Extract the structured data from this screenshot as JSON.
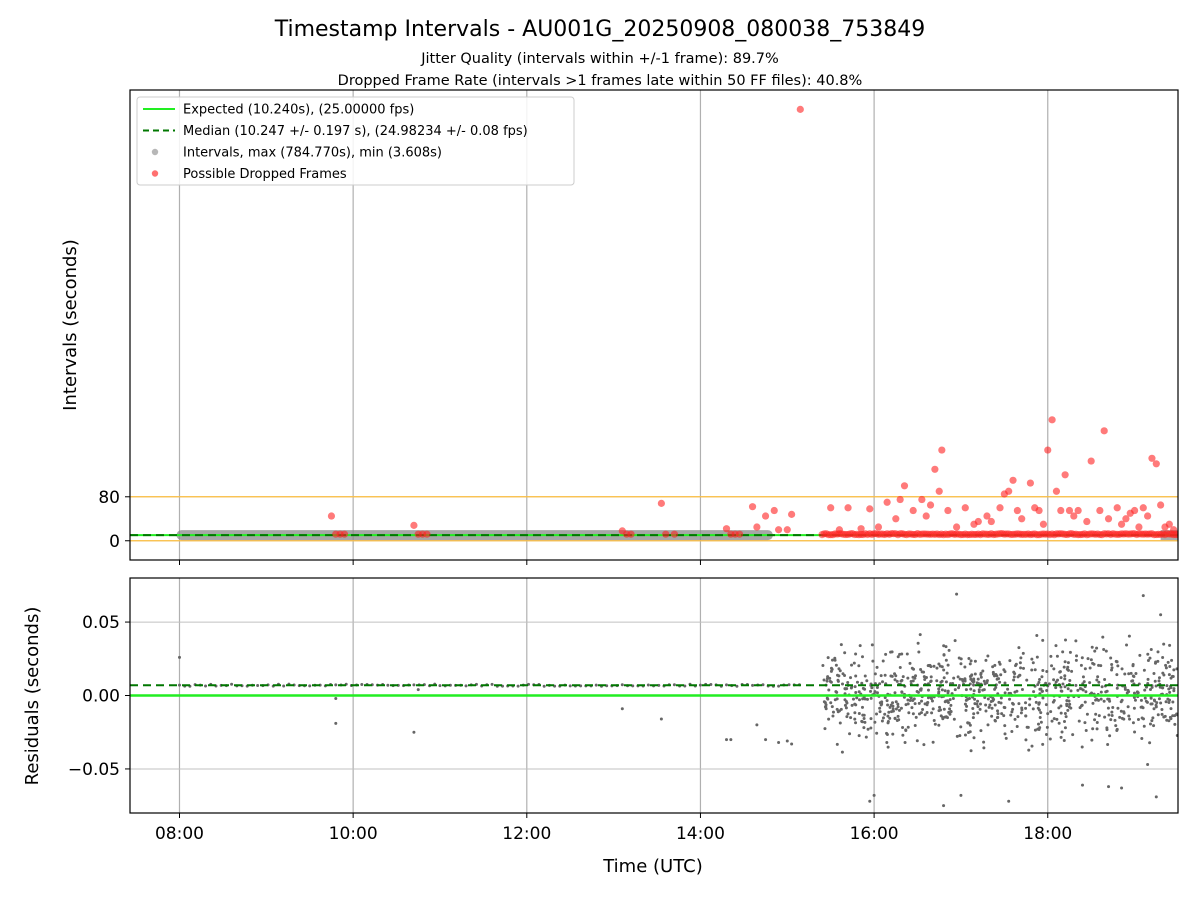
{
  "header": {
    "title": "Timestamp Intervals - AU001G_20250908_080038_753849",
    "subtitle1": "Jitter Quality (intervals within +/-1 frame): 89.7%",
    "subtitle2": "Dropped Frame Rate (intervals >1 frames late within 50 FF files): 40.8%"
  },
  "chart_data": [
    {
      "type": "scatter",
      "panel": "top",
      "ylabel": "Intervals (seconds)",
      "y_ticks": [
        0,
        80
      ],
      "ylim": [
        -35,
        820
      ],
      "xlim": [
        7.43,
        19.5
      ],
      "x_ticks": [
        "08:00",
        "10:00",
        "12:00",
        "14:00",
        "16:00",
        "18:00"
      ],
      "grid": true,
      "legend_position": "upper-left",
      "legend": [
        {
          "label": "Expected (10.240s), (25.00000 fps)",
          "style": "solid",
          "color": "#22ee22"
        },
        {
          "label": "Median (10.247 +/- 0.197 s), (24.98234 +/- 0.08 fps)",
          "style": "dashed",
          "color": "#007700"
        },
        {
          "label": "Intervals, max (784.770s), min (3.608s)",
          "style": "marker",
          "color": "#999999"
        },
        {
          "label": "Possible Dropped Frames",
          "style": "marker",
          "color": "#ff3333"
        }
      ],
      "expected_interval": 10.24,
      "median_interval": 10.247,
      "threshold_lines": [
        80
      ],
      "series": [
        {
          "name": "Intervals",
          "color": "#888888",
          "band_start": 8.0,
          "band_end": 14.8,
          "value": 10.24
        },
        {
          "name": "Possible Dropped Frames",
          "color": "#ff2222",
          "points": [
            [
              9.75,
              45
            ],
            [
              9.8,
              12
            ],
            [
              9.85,
              12
            ],
            [
              9.9,
              12
            ],
            [
              10.7,
              28
            ],
            [
              10.75,
              12
            ],
            [
              10.8,
              12
            ],
            [
              10.85,
              12
            ],
            [
              13.1,
              18
            ],
            [
              13.15,
              12
            ],
            [
              13.2,
              12
            ],
            [
              13.55,
              68
            ],
            [
              13.6,
              12
            ],
            [
              13.7,
              12
            ],
            [
              14.3,
              22
            ],
            [
              14.35,
              12
            ],
            [
              14.4,
              12
            ],
            [
              14.45,
              12
            ],
            [
              14.6,
              62
            ],
            [
              14.65,
              25
            ],
            [
              14.75,
              45
            ],
            [
              14.85,
              55
            ],
            [
              14.9,
              20
            ],
            [
              15.0,
              20
            ],
            [
              15.05,
              48
            ],
            [
              15.15,
              784.77
            ],
            [
              15.5,
              60
            ],
            [
              15.6,
              20
            ],
            [
              15.7,
              60
            ],
            [
              15.85,
              22
            ],
            [
              15.95,
              58
            ],
            [
              16.05,
              25
            ],
            [
              16.15,
              70
            ],
            [
              16.25,
              40
            ],
            [
              16.3,
              75
            ],
            [
              16.35,
              100
            ],
            [
              16.45,
              55
            ],
            [
              16.55,
              75
            ],
            [
              16.6,
              45
            ],
            [
              16.65,
              65
            ],
            [
              16.7,
              130
            ],
            [
              16.75,
              90
            ],
            [
              16.78,
              165
            ],
            [
              16.85,
              55
            ],
            [
              16.95,
              25
            ],
            [
              17.05,
              60
            ],
            [
              17.15,
              30
            ],
            [
              17.2,
              35
            ],
            [
              17.3,
              45
            ],
            [
              17.35,
              35
            ],
            [
              17.45,
              60
            ],
            [
              17.5,
              85
            ],
            [
              17.55,
              90
            ],
            [
              17.6,
              110
            ],
            [
              17.65,
              55
            ],
            [
              17.7,
              40
            ],
            [
              17.8,
              105
            ],
            [
              17.85,
              60
            ],
            [
              17.9,
              55
            ],
            [
              17.95,
              30
            ],
            [
              18.0,
              165
            ],
            [
              18.05,
              220
            ],
            [
              18.1,
              90
            ],
            [
              18.15,
              55
            ],
            [
              18.2,
              120
            ],
            [
              18.25,
              55
            ],
            [
              18.3,
              45
            ],
            [
              18.35,
              55
            ],
            [
              18.45,
              35
            ],
            [
              18.5,
              145
            ],
            [
              18.6,
              55
            ],
            [
              18.65,
              200
            ],
            [
              18.7,
              40
            ],
            [
              18.8,
              60
            ],
            [
              18.85,
              30
            ],
            [
              18.9,
              40
            ],
            [
              18.95,
              50
            ],
            [
              19.0,
              55
            ],
            [
              19.05,
              25
            ],
            [
              19.1,
              60
            ],
            [
              19.15,
              45
            ],
            [
              19.2,
              150
            ],
            [
              19.25,
              140
            ],
            [
              19.3,
              65
            ],
            [
              19.35,
              25
            ],
            [
              19.4,
              30
            ],
            [
              19.45,
              20
            ]
          ],
          "dense_band": {
            "start": 15.4,
            "end": 19.5,
            "value": 12
          }
        }
      ]
    },
    {
      "type": "scatter",
      "panel": "bottom",
      "xlabel": "Time (UTC)",
      "ylabel": "Residuals (seconds)",
      "y_ticks": [
        "0.05",
        "0.00",
        "−0.05"
      ],
      "y_tick_values": [
        0.05,
        0.0,
        -0.05
      ],
      "ylim": [
        -0.08,
        0.08
      ],
      "xlim": [
        7.43,
        19.5
      ],
      "x_ticks": [
        "08:00",
        "10:00",
        "12:00",
        "14:00",
        "16:00",
        "18:00"
      ],
      "x_tick_values": [
        8,
        10,
        12,
        14,
        16,
        18
      ],
      "grid": true,
      "expected_residual": 0.0,
      "median_residual": 0.007,
      "series": [
        {
          "name": "Residuals",
          "color": "#666666",
          "outliers": [
            [
              8.0,
              0.026
            ],
            [
              9.8,
              -0.019
            ],
            [
              9.8,
              -0.002
            ],
            [
              10.7,
              -0.025
            ],
            [
              10.75,
              0.004
            ],
            [
              13.1,
              -0.009
            ],
            [
              13.55,
              -0.016
            ],
            [
              14.3,
              -0.03
            ],
            [
              14.35,
              -0.03
            ],
            [
              14.65,
              -0.02
            ],
            [
              14.75,
              -0.03
            ],
            [
              14.9,
              -0.032
            ],
            [
              15.0,
              -0.031
            ],
            [
              15.05,
              -0.033
            ],
            [
              15.95,
              -0.072
            ],
            [
              16.0,
              -0.068
            ],
            [
              16.8,
              -0.075
            ],
            [
              16.95,
              0.069
            ],
            [
              17.0,
              -0.068
            ],
            [
              17.55,
              -0.072
            ],
            [
              18.4,
              -0.061
            ],
            [
              18.7,
              -0.062
            ],
            [
              18.85,
              -0.063
            ],
            [
              19.1,
              0.068
            ],
            [
              19.15,
              -0.047
            ],
            [
              19.25,
              -0.069
            ],
            [
              19.3,
              0.055
            ]
          ],
          "quiet_band": {
            "start": 8.0,
            "end": 15.2,
            "value": 0.007
          },
          "noisy_band": {
            "start": 15.4,
            "end": 19.5,
            "min": -0.045,
            "max": 0.045
          }
        }
      ]
    }
  ]
}
